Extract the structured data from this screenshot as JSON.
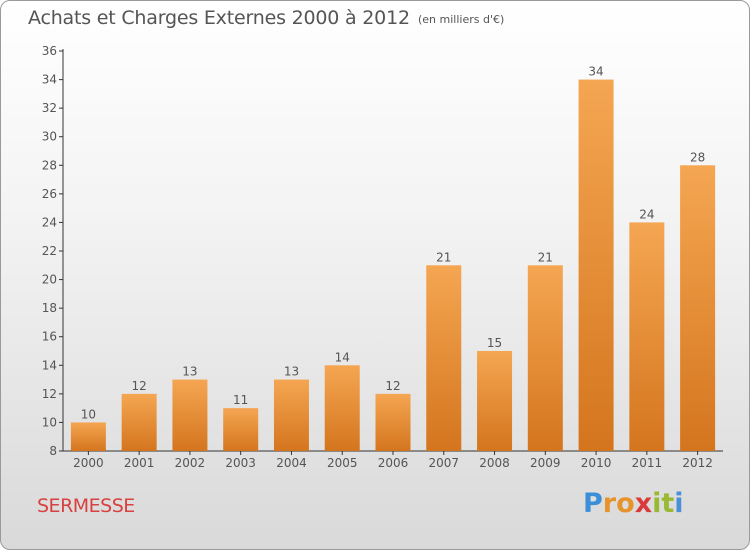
{
  "title": "Achats et Charges Externes 2000 à 2012",
  "subtitle": "(en milliers d'€)",
  "commune": "SERMESSE",
  "logo": {
    "letters": [
      "P",
      "r",
      "o",
      "x",
      "i",
      "t",
      "i"
    ],
    "colors": [
      "#3a8fd8",
      "#e6932c",
      "#e6932c",
      "#d93a3a",
      "#9ab832",
      "#9ab832",
      "#4a90d9"
    ]
  },
  "colors": {
    "bar_light": "#f5a652",
    "bar_dark": "#d4751e",
    "text": "#555555",
    "commune": "#d94040"
  },
  "chart_data": {
    "type": "bar",
    "categories": [
      "2000",
      "2001",
      "2002",
      "2003",
      "2004",
      "2005",
      "2006",
      "2007",
      "2008",
      "2009",
      "2010",
      "2011",
      "2012"
    ],
    "values": [
      10,
      12,
      13,
      11,
      13,
      14,
      12,
      21,
      15,
      21,
      34,
      24,
      28
    ],
    "data_labels": [
      "10",
      "12",
      "13",
      "11",
      "13",
      "14",
      "12",
      "21",
      "15",
      "21",
      "34",
      "24",
      "28"
    ],
    "title": "Achats et Charges Externes 2000 à 2012",
    "subtitle": "(en milliers d'€)",
    "ylim": [
      8,
      36
    ],
    "yticks": [
      8,
      10,
      12,
      14,
      16,
      18,
      20,
      22,
      24,
      26,
      28,
      30,
      32,
      34,
      36
    ],
    "grid": false
  }
}
